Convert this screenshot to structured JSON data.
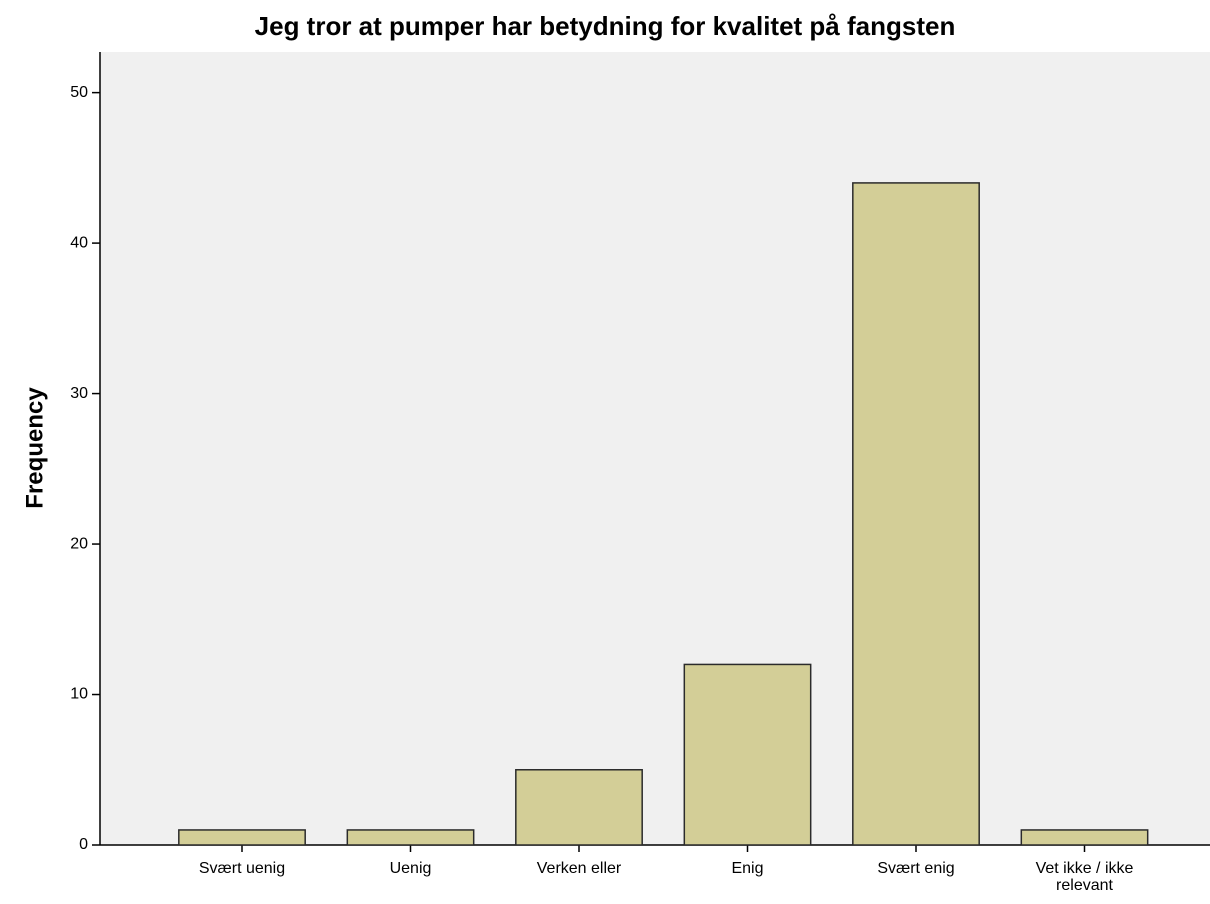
{
  "chart_data": {
    "type": "bar",
    "title": "Jeg tror at pumper har betydning for kvalitet på fangsten",
    "y_label": "Frequency",
    "categories": [
      "Svært uenig",
      "Uenig",
      "Verken eller",
      "Enig",
      "Svært enig",
      "Vet ikke / ikke relevant"
    ],
    "values": [
      1,
      1,
      5,
      12,
      44,
      1
    ],
    "color": "#d3ce97",
    "ylim": [
      0,
      52.7
    ],
    "yticks": [
      0,
      10,
      20,
      30,
      40,
      50
    ],
    "grid": false
  }
}
